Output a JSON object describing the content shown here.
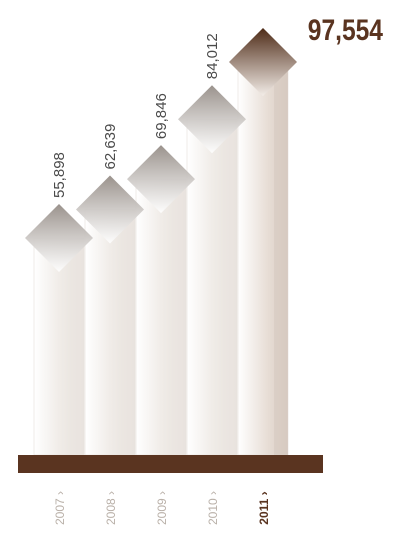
{
  "chart_data": {
    "type": "bar",
    "title": "",
    "xlabel": "",
    "ylabel": "",
    "categories": [
      "2007",
      "2008",
      "2009",
      "2010",
      "2011"
    ],
    "values": [
      55898,
      62639,
      69846,
      84012,
      97554
    ],
    "value_labels": [
      "55,898",
      "62,639",
      "69,846",
      "84,012",
      "97,554"
    ],
    "category_labels": [
      "2007 ›",
      "2008 ›",
      "2009 ›",
      "2010 ›",
      "2011 ›"
    ],
    "highlight_index": 4,
    "ylim": [
      0,
      100000
    ],
    "grid": false,
    "legend": "none"
  },
  "colors": {
    "baseline": "#5a3420",
    "highlight": "#5a3420",
    "label": "#4a4a4a",
    "category_label": "#b9b0a8",
    "column": "#f2eeea",
    "diamond": "#aaa39d"
  }
}
